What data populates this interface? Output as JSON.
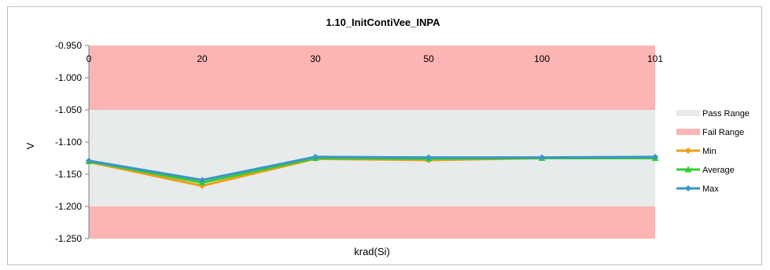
{
  "chart_data": {
    "type": "line",
    "title": "1.10_InitContiVee_INPA",
    "xlabel": "krad(Si)",
    "ylabel": "V",
    "categories": [
      "0",
      "20",
      "30",
      "50",
      "100",
      "101"
    ],
    "ylim": [
      -1.25,
      -0.95
    ],
    "yticks": [
      "-0.950",
      "-1.000",
      "-1.050",
      "-1.100",
      "-1.150",
      "-1.200",
      "-1.250"
    ],
    "ytick_values": [
      -0.95,
      -1.0,
      -1.05,
      -1.1,
      -1.15,
      -1.2,
      -1.25
    ],
    "pass_range": {
      "name": "Pass Range",
      "low": -1.2,
      "high": -1.05,
      "color": "#e8ebeb"
    },
    "fail_range": {
      "name": "Fail Range",
      "color": "#fcb4b4"
    },
    "series": [
      {
        "name": "Min",
        "color": "#f39c12",
        "marker": "diamond",
        "values": [
          -1.131,
          -1.168,
          -1.126,
          -1.128,
          -1.125,
          -1.125
        ]
      },
      {
        "name": "Average",
        "color": "#32cd32",
        "marker": "triangle",
        "values": [
          -1.13,
          -1.163,
          -1.125,
          -1.126,
          -1.125,
          -1.125
        ]
      },
      {
        "name": "Max",
        "color": "#3a95c9",
        "marker": "diamond",
        "values": [
          -1.129,
          -1.159,
          -1.123,
          -1.124,
          -1.124,
          -1.123
        ]
      }
    ],
    "grid": false,
    "legend_position": "right"
  }
}
